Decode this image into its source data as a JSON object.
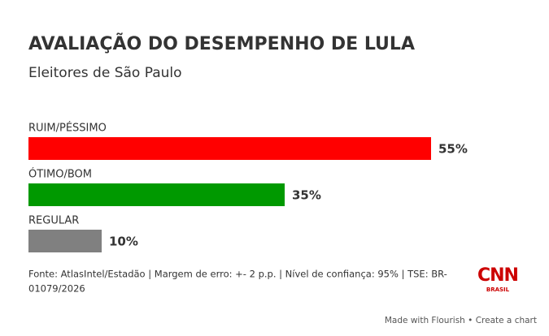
{
  "chart_data": {
    "type": "bar",
    "orientation": "horizontal",
    "title": "AVALIAÇÃO DO DESEMPENHO DE LULA",
    "subtitle": "Eleitores de São Paulo",
    "categories": [
      "RUIM/PÉSSIMO",
      "ÓTIMO/BOM",
      "REGULAR"
    ],
    "values": [
      55,
      35,
      10
    ],
    "value_labels": [
      "55%",
      "35%",
      "10%"
    ],
    "colors": [
      "#ff0000",
      "#009900",
      "#808080"
    ],
    "source": [
      "Fonte: AtlasIntel/Estadão | Margem de erro: +- 2 p.p. | Nível de confiança: 95% | TSE: BR-",
      "01079/2026"
    ],
    "logo": {
      "main": "CNN",
      "sub": "BRASIL"
    },
    "footer": "Made with Flourish • Create a chart"
  }
}
